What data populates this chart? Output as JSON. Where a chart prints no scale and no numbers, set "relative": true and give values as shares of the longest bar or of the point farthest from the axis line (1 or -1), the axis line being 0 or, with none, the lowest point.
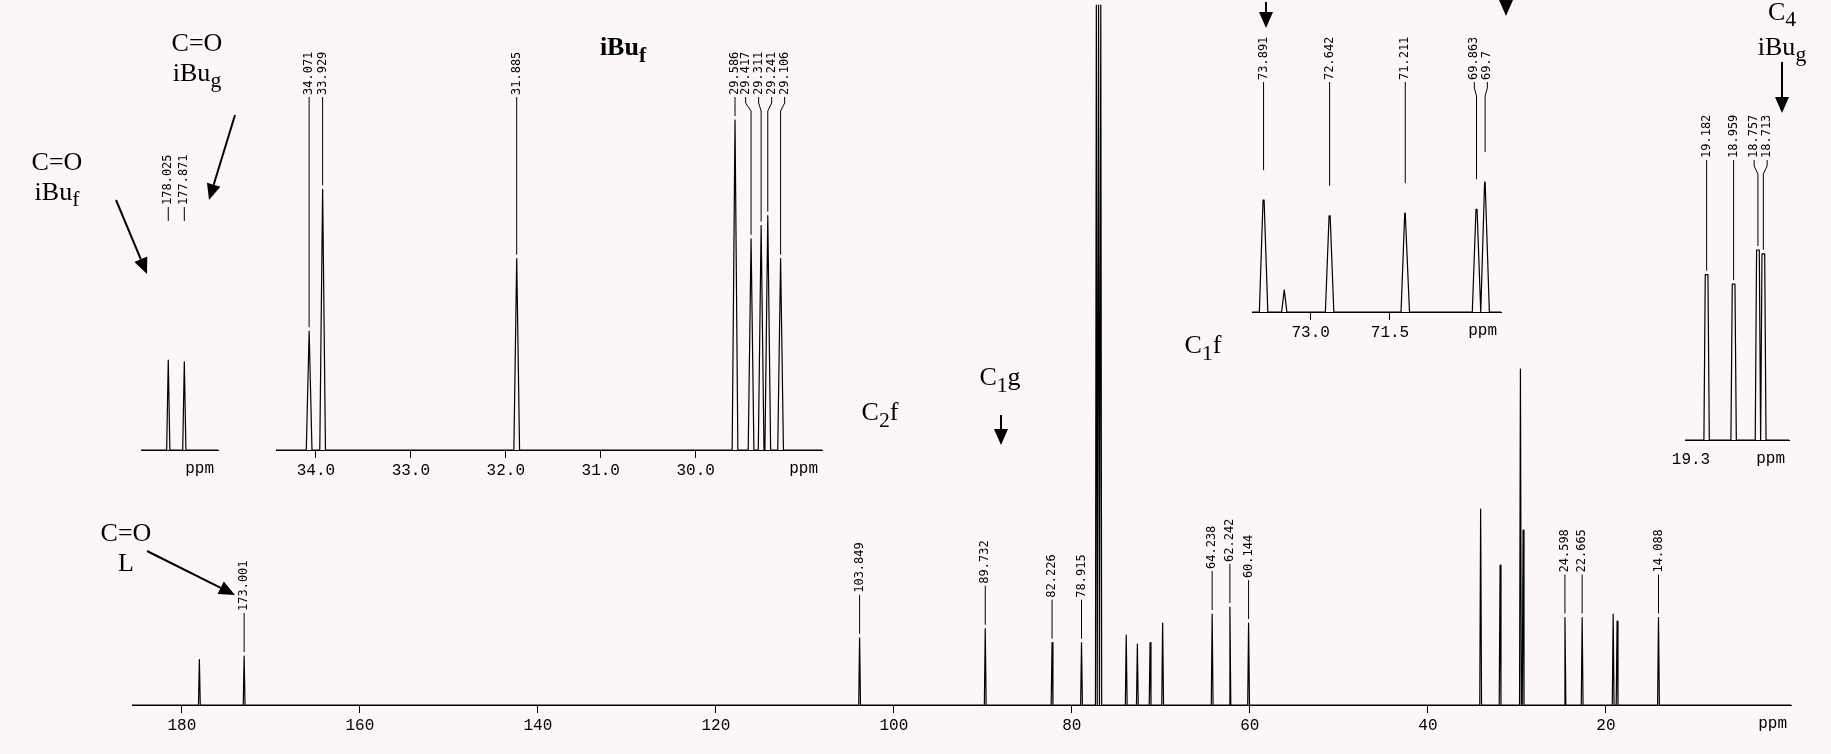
{
  "chart_data": [
    {
      "type": "line",
      "relative": true,
      "xlabel": "ppm",
      "xlim": [
        185.6,
        -0.8
      ],
      "xticks": [
        180,
        160,
        140,
        120,
        100,
        80,
        60,
        40,
        20
      ],
      "x": [
        185.6,
        178.13,
        178.03,
        177.93,
        173.101,
        173.001,
        172.901,
        103.949,
        103.849,
        103.749,
        89.832,
        89.732,
        89.632,
        82.326,
        82.226,
        82.126,
        79.015,
        78.915,
        78.815,
        77.35,
        77.25,
        77.15,
        77.1,
        77.0,
        76.9,
        76.85,
        76.75,
        76.65,
        73.991,
        73.891,
        73.791,
        72.742,
        72.642,
        72.542,
        71.311,
        71.211,
        71.111,
        69.9,
        69.8,
        69.7,
        64.338,
        64.238,
        64.138,
        62.342,
        62.242,
        62.142,
        60.244,
        60.144,
        60.044,
        34.17,
        34.07,
        33.97,
        31.985,
        31.885,
        31.785,
        29.7,
        29.6,
        29.5,
        29.4,
        29.3,
        29.2,
        24.698,
        24.598,
        24.498,
        22.765,
        22.665,
        22.565,
        19.28,
        19.18,
        19.08,
        18.84,
        18.74,
        18.64,
        14.188,
        14.088,
        13.988,
        -0.8
      ],
      "series": [
        {
          "color": "#000000",
          "values": [
            0,
            0,
            0.065,
            0,
            0,
            0.07,
            0,
            0,
            0.096,
            0,
            0,
            0.109,
            0,
            0,
            0.089,
            0,
            0,
            0.089,
            0,
            0,
            1,
            0,
            0,
            1,
            0,
            0,
            1,
            0,
            0,
            0.1,
            0,
            0,
            0.087,
            0,
            0,
            0.089,
            0,
            0,
            0.117,
            0,
            0,
            0.13,
            0,
            0,
            0.14,
            0,
            0,
            0.117,
            0,
            0,
            0.28,
            0,
            0,
            0.2,
            0,
            0,
            0.48,
            0,
            0,
            0.25,
            0,
            0,
            0.125,
            0,
            0,
            0.125,
            0,
            0,
            0.13,
            0,
            0,
            0.12,
            0,
            0,
            0.125,
            0,
            0
          ]
        }
      ],
      "annotations": [
        {
          "text": "173.001",
          "x": 173.001,
          "y": 0.07
        },
        {
          "text": "103.849",
          "x": 103.849,
          "y": 0.096
        },
        {
          "text": "89.732",
          "x": 89.732,
          "y": 0.109
        },
        {
          "text": "82.226",
          "x": 82.226,
          "y": 0.089
        },
        {
          "text": "78.915",
          "x": 78.915,
          "y": 0.089
        },
        {
          "text": "64.238",
          "x": 64.238,
          "y": 0.13
        },
        {
          "text": "62.242",
          "x": 62.242,
          "y": 0.14
        },
        {
          "text": "60.144",
          "x": 60.144,
          "y": 0.117
        },
        {
          "text": "24.598",
          "x": 24.598,
          "y": 0.125
        },
        {
          "text": "22.665",
          "x": 22.665,
          "y": 0.125
        },
        {
          "text": "14.088",
          "x": 14.088,
          "y": 0.125
        },
        "C=O\nL",
        "C$_{2}$f",
        "C$_{1}$g",
        "C$_{1}$f"
      ]
    },
    {
      "type": "line",
      "relative": true,
      "xlabel": "ppm",
      "categories": [
        null,
        null,
        null,
        null,
        null,
        null,
        null,
        null,
        null,
        null,
        null,
        null,
        null,
        null,
        null,
        null,
        null,
        null,
        null,
        null,
        null,
        null,
        null,
        null,
        null,
        null,
        null,
        null,
        null,
        null,
        null,
        null,
        null,
        null,
        null,
        null,
        null,
        null,
        null,
        null,
        null,
        null,
        null,
        null,
        null,
        null,
        null,
        null,
        null
      ],
      "series": [
        {
          "color": "#000000",
          "values": [
            0,
            0,
            0,
            0,
            0,
            0,
            0,
            0,
            0,
            0,
            0,
            0,
            0,
            0,
            0,
            0,
            0,
            1,
            0,
            0,
            0,
            0,
            0,
            0,
            0,
            0,
            0,
            0.98,
            0,
            0,
            0,
            0,
            0,
            0,
            0,
            0,
            0,
            0,
            0,
            0,
            0,
            0,
            0,
            0,
            0,
            0,
            0,
            0,
            0
          ]
        }
      ],
      "annotations": [
        "178.025",
        "177.871",
        "C=O\niBu$_{f}$",
        "C=O\niBu$_{g}$"
      ]
    },
    {
      "type": "line",
      "relative": true,
      "title": "iBu$_{f}$",
      "xlabel": "ppm",
      "xlim": [
        34.42,
        28.67
      ],
      "xticks": [
        {
          "value": 34,
          "label": "34.0"
        },
        {
          "value": 33,
          "label": "33.0"
        },
        {
          "value": 32,
          "label": "32.0"
        },
        {
          "value": 31,
          "label": "31.0"
        },
        {
          "value": 30,
          "label": "30.0"
        }
      ],
      "x": [
        34.42,
        34.101,
        34.071,
        34.041,
        33.959,
        33.929,
        33.899,
        31.915,
        31.885,
        31.855,
        29.616,
        29.586,
        29.556,
        29.447,
        29.417,
        29.387,
        29.341,
        29.311,
        29.281,
        29.271,
        29.241,
        29.211,
        29.136,
        29.106,
        29.076,
        28.67
      ],
      "series": [
        {
          "color": "#000000",
          "values": [
            0,
            0,
            0.36,
            0,
            0,
            0.79,
            0,
            0,
            0.58,
            0,
            0,
            1,
            0,
            0,
            0.64,
            0,
            0,
            0.68,
            0,
            0,
            0.71,
            0,
            0,
            0.58,
            0,
            0
          ]
        }
      ],
      "annotations": [
        {
          "text": "34.071",
          "x": 34.071,
          "y": 0.36
        },
        {
          "text": "33.929",
          "x": 33.929,
          "y": 0.79
        },
        {
          "text": "31.885",
          "x": 31.885,
          "y": 0.58
        },
        {
          "text": "29.586",
          "x": 29.586,
          "y": 1
        },
        {
          "text": "29.417",
          "x": 29.417,
          "y": 0.64
        },
        {
          "text": "29.311",
          "x": 29.311,
          "y": 0.68
        },
        {
          "text": "29.241",
          "x": 29.241,
          "y": 0.71
        },
        {
          "text": "29.106",
          "x": 29.106,
          "y": 0.58
        }
      ]
    },
    {
      "type": "line",
      "relative": true,
      "xlabel": "ppm",
      "xlim": [
        74.11,
        69.4
      ],
      "xticks": [
        {
          "value": 73,
          "label": "73.0"
        },
        {
          "value": 71.5,
          "label": "71.5"
        }
      ],
      "x": [
        74.11,
        73.971,
        73.901,
        73.891,
        73.881,
        73.811,
        73.55,
        73.5,
        73.45,
        72.722,
        72.652,
        72.642,
        72.632,
        72.562,
        71.291,
        71.221,
        71.211,
        71.201,
        71.131,
        69.943,
        69.873,
        69.863,
        69.853,
        69.783,
        69.78,
        69.71,
        69.7,
        69.69,
        69.62,
        69.4
      ],
      "series": [
        {
          "color": "#000000",
          "values": [
            0,
            0,
            0.86,
            0.86,
            0.86,
            0,
            0,
            0.17,
            0,
            0,
            0.74,
            0.74,
            0.74,
            0,
            0,
            0.76,
            0.76,
            0.76,
            0,
            0,
            0.79,
            0.79,
            0.79,
            0,
            0,
            1,
            1,
            1,
            0,
            0
          ]
        }
      ],
      "annotations": [
        "73.891",
        "72.642",
        "71.211",
        "69.863",
        "69.7"
      ]
    },
    {
      "type": "line",
      "relative": true,
      "xlabel": "ppm",
      "categories": [
        null,
        null,
        null,
        null,
        null,
        null,
        null,
        null,
        null,
        null,
        null,
        null,
        null,
        null,
        null,
        null,
        null,
        null,
        null,
        null,
        null,
        null,
        null,
        null,
        null,
        null,
        null,
        null,
        null,
        null,
        null,
        null,
        null,
        null,
        null,
        null,
        null,
        null,
        null,
        null,
        null,
        null,
        null,
        null,
        null,
        null,
        null,
        null,
        null,
        null,
        null,
        null,
        null,
        null,
        null,
        null,
        null,
        null,
        null,
        null,
        null,
        null,
        null,
        null,
        null,
        null,
        null,
        null,
        null,
        null,
        null,
        null,
        null,
        null,
        null,
        null,
        null,
        null
      ],
      "series": [
        {
          "color": "#000000",
          "values": [
            0,
            0,
            0,
            0,
            0,
            0,
            0,
            0,
            0,
            0,
            0,
            0,
            0,
            0,
            0,
            0.87,
            0.87,
            0.87,
            0,
            0,
            0,
            0,
            0,
            0,
            0,
            0,
            0,
            0,
            0,
            0,
            0,
            0,
            0,
            0,
            0,
            0.82,
            0.82,
            0.82,
            0,
            0,
            0,
            0,
            0,
            0,
            0,
            0,
            0,
            0,
            0,
            0,
            0,
            0,
            0,
            1,
            1,
            1,
            0,
            0.98,
            0.98,
            0.98,
            0,
            0,
            0,
            0,
            0,
            0,
            0,
            0,
            0,
            0,
            0,
            0,
            0,
            0,
            0,
            0,
            0,
            0
          ]
        }
      ],
      "annotations": [
        "19.182",
        "18.959",
        "18.757",
        "18.713",
        "C$_{4}$\niBu$_{g}$",
        "19.3"
      ]
    }
  ]
}
